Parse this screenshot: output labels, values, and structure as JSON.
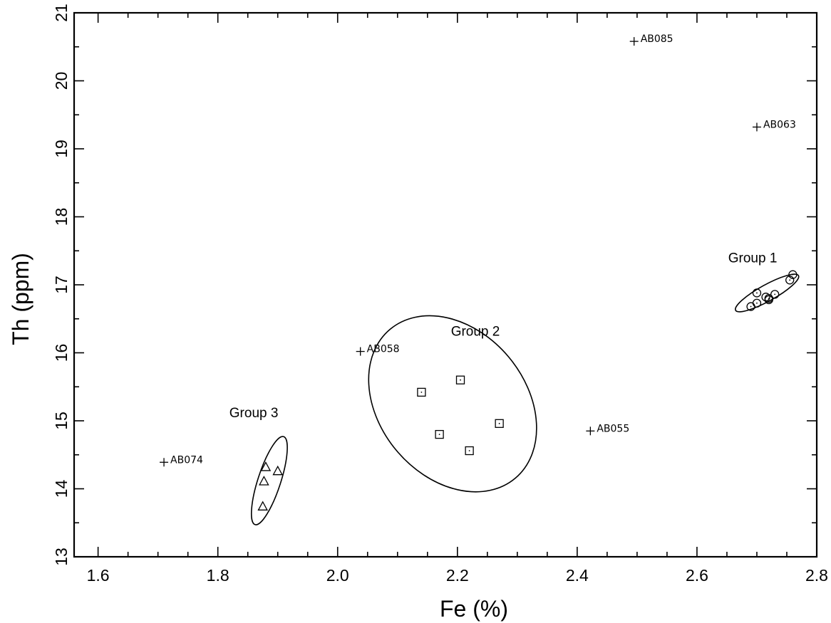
{
  "chart_data": {
    "type": "scatter",
    "title": "",
    "xlabel": "Fe (%)",
    "ylabel": "Th (ppm)",
    "xlim": [
      1.56,
      2.8
    ],
    "ylim": [
      13,
      21
    ],
    "x_ticks": [
      1.6,
      1.8,
      2.0,
      2.2,
      2.4,
      2.6,
      2.8
    ],
    "x_tick_labels": [
      "1.6",
      "1.8",
      "2.0",
      "2.2",
      "2.4",
      "2.6",
      "2.8"
    ],
    "y_ticks": [
      13,
      14,
      15,
      16,
      17,
      18,
      19,
      20,
      21
    ],
    "y_tick_labels": [
      "13",
      "14",
      "15",
      "16",
      "17",
      "18",
      "19",
      "20",
      "21"
    ],
    "grid": false,
    "series": [
      {
        "name": "Group 1",
        "marker": "circle",
        "points": [
          {
            "x": 2.69,
            "y": 16.68
          },
          {
            "x": 2.7,
            "y": 16.73
          },
          {
            "x": 2.7,
            "y": 16.88
          },
          {
            "x": 2.715,
            "y": 16.82
          },
          {
            "x": 2.72,
            "y": 16.78
          },
          {
            "x": 2.72,
            "y": 16.8
          },
          {
            "x": 2.73,
            "y": 16.86
          },
          {
            "x": 2.755,
            "y": 17.07
          },
          {
            "x": 2.76,
            "y": 17.15
          }
        ],
        "ellipse": {
          "cx": 2.717,
          "cy": 16.88,
          "rx": 0.06,
          "ry": 0.12,
          "angle_deg": -29
        }
      },
      {
        "name": "Group 2",
        "marker": "square",
        "points": [
          {
            "x": 2.14,
            "y": 15.42
          },
          {
            "x": 2.205,
            "y": 15.6
          },
          {
            "x": 2.27,
            "y": 14.96
          },
          {
            "x": 2.17,
            "y": 14.8
          },
          {
            "x": 2.22,
            "y": 14.56
          }
        ],
        "ellipse": {
          "cx": 2.192,
          "cy": 15.25,
          "rx": 0.122,
          "ry": 1.43,
          "angle_deg": -40
        }
      },
      {
        "name": "Group 3",
        "marker": "triangle",
        "points": [
          {
            "x": 1.88,
            "y": 14.32
          },
          {
            "x": 1.9,
            "y": 14.26
          },
          {
            "x": 1.877,
            "y": 14.11
          },
          {
            "x": 1.875,
            "y": 13.74
          }
        ],
        "ellipse": {
          "cx": 1.886,
          "cy": 14.12,
          "rx": 0.019,
          "ry": 0.68,
          "angle_deg": 18
        }
      },
      {
        "name": "",
        "marker": "plus",
        "points": [
          {
            "x": 2.495,
            "y": 20.58,
            "label": "AB085"
          },
          {
            "x": 2.7,
            "y": 19.32,
            "label": "AB063"
          },
          {
            "x": 2.038,
            "y": 16.02,
            "label": "AB058"
          },
          {
            "x": 2.422,
            "y": 14.85,
            "label": "AB055"
          },
          {
            "x": 1.71,
            "y": 14.39,
            "label": "AB074"
          }
        ]
      }
    ],
    "group_labels": [
      {
        "text": "Group 1",
        "x": 2.693,
        "y": 17.33
      },
      {
        "text": "Group 2",
        "x": 2.23,
        "y": 16.25
      },
      {
        "text": "Group 3",
        "x": 1.86,
        "y": 15.05
      }
    ]
  }
}
